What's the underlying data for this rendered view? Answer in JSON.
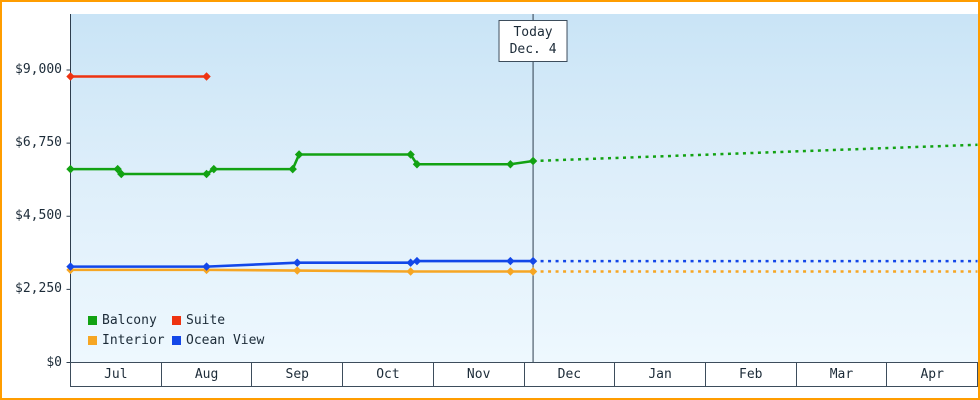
{
  "colors": {
    "frame_border": "#ff9d00",
    "axis": "#2e3e4e",
    "text": "#1c2b38"
  },
  "chart_data": {
    "type": "line",
    "description": "Cabin price history and projection by category",
    "y_axis": {
      "min": 0,
      "max": 9000,
      "ticks": [
        {
          "value": 0,
          "label": "$0"
        },
        {
          "value": 2250,
          "label": "$2,250"
        },
        {
          "value": 4500,
          "label": "$4,500"
        },
        {
          "value": 6750,
          "label": "$6,750"
        },
        {
          "value": 9000,
          "label": "$9,000"
        }
      ]
    },
    "x_axis": {
      "months": [
        "Jul",
        "Aug",
        "Sep",
        "Oct",
        "Nov",
        "Dec",
        "Jan",
        "Feb",
        "Mar",
        "Apr"
      ]
    },
    "today": {
      "label_line1": "Today",
      "label_line2": "Dec. 4",
      "month_position": 5.1
    },
    "series": [
      {
        "name": "Balcony",
        "color": "#12a212",
        "solid": [
          [
            0,
            5950
          ],
          [
            0.52,
            5950
          ],
          [
            0.56,
            5800
          ],
          [
            1.5,
            5800
          ],
          [
            1.58,
            5950
          ],
          [
            2.45,
            5950
          ],
          [
            2.52,
            6400
          ],
          [
            3.75,
            6400
          ],
          [
            3.82,
            6100
          ],
          [
            4.85,
            6100
          ],
          [
            5.1,
            6200
          ]
        ],
        "dashed": [
          [
            5.1,
            6200
          ],
          [
            10,
            6700
          ]
        ]
      },
      {
        "name": "Suite",
        "color": "#ee3311",
        "solid": [
          [
            0,
            8800
          ],
          [
            1.5,
            8800
          ]
        ],
        "dashed": []
      },
      {
        "name": "Interior",
        "color": "#f6a623",
        "solid": [
          [
            0,
            2850
          ],
          [
            1.5,
            2850
          ],
          [
            2.5,
            2830
          ],
          [
            3.75,
            2800
          ],
          [
            4.85,
            2800
          ],
          [
            5.1,
            2800
          ]
        ],
        "dashed": [
          [
            5.1,
            2800
          ],
          [
            10,
            2800
          ]
        ]
      },
      {
        "name": "Ocean View",
        "color": "#1347e8",
        "solid": [
          [
            0,
            2950
          ],
          [
            1.5,
            2950
          ],
          [
            2.5,
            3070
          ],
          [
            3.75,
            3070
          ],
          [
            3.82,
            3120
          ],
          [
            4.85,
            3120
          ],
          [
            5.1,
            3120
          ]
        ],
        "dashed": [
          [
            5.1,
            3120
          ],
          [
            10,
            3120
          ]
        ]
      }
    ],
    "legend": [
      {
        "label": "Balcony",
        "color": "#12a212"
      },
      {
        "label": "Suite",
        "color": "#ee3311"
      },
      {
        "label": "Interior",
        "color": "#f6a623"
      },
      {
        "label": "Ocean View",
        "color": "#1347e8"
      }
    ]
  }
}
